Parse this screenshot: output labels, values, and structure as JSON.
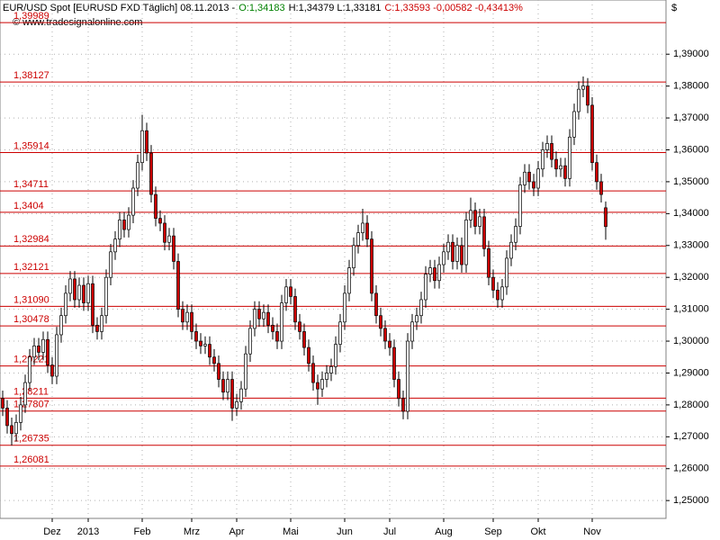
{
  "chart_data": {
    "type": "candlestick",
    "header": [
      {
        "text": "EUR/USD Spot [EURUSD FXD  Täglich] 08.11.2013 -",
        "color": "#000000"
      },
      {
        "text": "O:1,34183",
        "color": "#008000"
      },
      {
        "text": "H:1,34379 L:1,33181",
        "color": "#000000"
      },
      {
        "text": "C:1,33593 -0,00582 -0,43413%",
        "color": "#cc0000"
      }
    ],
    "source": "© www.tradesignalonline.com",
    "currency": "$",
    "up_color": "#ffffff",
    "down_color": "#cc0000",
    "grid": true,
    "categories": [
      null,
      null,
      null,
      null,
      null,
      null,
      null,
      null,
      null,
      null,
      null,
      "Dez",
      null,
      null,
      null,
      null,
      null,
      null,
      null,
      "2013",
      null,
      null,
      null,
      null,
      null,
      null,
      null,
      null,
      null,
      null,
      null,
      "Feb",
      null,
      null,
      null,
      null,
      null,
      null,
      null,
      null,
      null,
      null,
      "Mrz",
      null,
      null,
      null,
      null,
      null,
      null,
      null,
      null,
      null,
      "Apr",
      null,
      null,
      null,
      null,
      null,
      null,
      null,
      null,
      null,
      null,
      null,
      "Mai",
      null,
      null,
      null,
      null,
      null,
      null,
      null,
      null,
      null,
      null,
      null,
      "Jun",
      null,
      null,
      null,
      null,
      null,
      null,
      null,
      null,
      null,
      "Jul",
      null,
      null,
      null,
      null,
      null,
      null,
      null,
      null,
      null,
      null,
      null,
      "Aug",
      null,
      null,
      null,
      null,
      null,
      null,
      null,
      null,
      null,
      null,
      "Sep",
      null,
      null,
      null,
      null,
      null,
      null,
      null,
      null,
      null,
      "Okt",
      null,
      null,
      null,
      null,
      null,
      null,
      null,
      null,
      null,
      null,
      null,
      "Nov",
      null,
      null,
      null
    ],
    "open": [
      1.282,
      1.279,
      1.2735,
      1.271,
      1.2745,
      1.28,
      1.287,
      1.295,
      1.2985,
      1.2965,
      1.3005,
      1.2925,
      1.289,
      1.302,
      1.308,
      1.315,
      1.3195,
      1.313,
      1.3175,
      1.312,
      1.318,
      1.305,
      1.303,
      1.308,
      1.32,
      1.328,
      1.332,
      1.338,
      1.335,
      1.3395,
      1.348,
      1.356,
      1.366,
      1.359,
      1.346,
      1.3385,
      1.337,
      1.331,
      1.333,
      1.325,
      1.31,
      1.306,
      1.309,
      1.303,
      1.3,
      1.2985,
      1.299,
      1.295,
      1.293,
      1.288,
      1.284,
      1.288,
      1.279,
      1.281,
      1.285,
      1.296,
      1.304,
      1.31,
      1.307,
      1.309,
      1.305,
      1.303,
      1.3,
      1.312,
      1.317,
      1.314,
      1.306,
      1.303,
      1.298,
      1.293,
      1.287,
      1.285,
      1.288,
      1.29,
      1.292,
      1.299,
      1.306,
      1.315,
      1.323,
      1.33,
      1.334,
      1.337,
      1.332,
      1.315,
      1.308,
      1.304,
      1.3,
      1.298,
      1.288,
      1.282,
      1.278,
      1.3,
      1.306,
      1.308,
      1.313,
      1.321,
      1.323,
      1.319,
      1.324,
      1.328,
      1.331,
      1.325,
      1.33,
      1.324,
      1.338,
      1.341,
      1.336,
      1.339,
      1.329,
      1.32,
      1.316,
      1.313,
      1.317,
      1.326,
      1.331,
      1.336,
      1.349,
      1.353,
      1.35,
      1.348,
      1.354,
      1.36,
      1.362,
      1.357,
      1.354,
      1.355,
      1.351,
      1.364,
      1.372,
      1.379,
      1.38,
      1.374,
      1.356,
      1.35,
      1.34183
    ],
    "high": [
      1.2845,
      1.2815,
      1.276,
      1.277,
      1.2825,
      1.2895,
      1.2975,
      1.301,
      1.301,
      1.303,
      1.303,
      1.295,
      1.3045,
      1.3105,
      1.3175,
      1.322,
      1.322,
      1.32,
      1.32,
      1.3205,
      1.3205,
      1.3075,
      1.3105,
      1.3225,
      1.3305,
      1.3345,
      1.3405,
      1.3405,
      1.342,
      1.3505,
      1.3585,
      1.371,
      1.3685,
      1.3615,
      1.3485,
      1.341,
      1.3395,
      1.3355,
      1.3355,
      1.3275,
      1.3125,
      1.3115,
      1.3115,
      1.3055,
      1.3025,
      1.3015,
      1.3015,
      1.2975,
      1.2955,
      1.2905,
      1.2905,
      1.2905,
      1.2835,
      1.2875,
      1.2985,
      1.3065,
      1.3125,
      1.3125,
      1.3115,
      1.3115,
      1.3075,
      1.3055,
      1.3145,
      1.3195,
      1.3195,
      1.3165,
      1.3085,
      1.3055,
      1.3005,
      1.2955,
      1.2895,
      1.2905,
      1.2925,
      1.2945,
      1.3015,
      1.3085,
      1.3175,
      1.3255,
      1.3325,
      1.3365,
      1.3415,
      1.3395,
      1.3345,
      1.3175,
      1.3105,
      1.3065,
      1.3025,
      1.3005,
      1.2905,
      1.2845,
      1.3025,
      1.3085,
      1.3105,
      1.3155,
      1.3235,
      1.3255,
      1.3255,
      1.3265,
      1.3305,
      1.3335,
      1.3335,
      1.3325,
      1.3325,
      1.3405,
      1.345,
      1.3435,
      1.3415,
      1.3415,
      1.3315,
      1.3225,
      1.3185,
      1.3195,
      1.3285,
      1.3335,
      1.3385,
      1.3515,
      1.3555,
      1.3555,
      1.3525,
      1.3565,
      1.3625,
      1.3645,
      1.3645,
      1.3595,
      1.3575,
      1.3575,
      1.3665,
      1.3745,
      1.3815,
      1.383,
      1.3825,
      1.3765,
      1.3585,
      1.3525,
      1.34379
    ],
    "low": [
      1.2765,
      1.271,
      1.2673,
      1.2685,
      1.272,
      1.2775,
      1.2845,
      1.2925,
      1.294,
      1.294,
      1.29,
      1.2865,
      1.2865,
      1.2995,
      1.3055,
      1.3125,
      1.3105,
      1.3105,
      1.3095,
      1.3095,
      1.3025,
      1.3005,
      1.3005,
      1.3055,
      1.3175,
      1.3255,
      1.3295,
      1.3325,
      1.3325,
      1.337,
      1.3455,
      1.3535,
      1.3565,
      1.3435,
      1.336,
      1.3345,
      1.3285,
      1.3285,
      1.3225,
      1.3075,
      1.3035,
      1.3035,
      1.3005,
      1.2975,
      1.296,
      1.296,
      1.2925,
      1.2905,
      1.2855,
      1.2815,
      1.2815,
      1.275,
      1.2765,
      1.2785,
      1.2825,
      1.2935,
      1.3015,
      1.3045,
      1.3045,
      1.3025,
      1.3005,
      1.2975,
      1.2975,
      1.3095,
      1.3115,
      1.3035,
      1.3005,
      1.2955,
      1.2905,
      1.2845,
      1.28,
      1.2825,
      1.2855,
      1.2875,
      1.2895,
      1.2965,
      1.3035,
      1.3125,
      1.3205,
      1.3275,
      1.3315,
      1.3295,
      1.3125,
      1.3055,
      1.3015,
      1.2975,
      1.2955,
      1.2855,
      1.2795,
      1.2755,
      1.2755,
      1.2975,
      1.3035,
      1.3055,
      1.3105,
      1.3185,
      1.3165,
      1.3165,
      1.3215,
      1.3255,
      1.3225,
      1.3225,
      1.3215,
      1.3215,
      1.3355,
      1.3335,
      1.3335,
      1.3265,
      1.3175,
      1.3135,
      1.3105,
      1.3105,
      1.3145,
      1.3235,
      1.3285,
      1.3335,
      1.3465,
      1.3475,
      1.3455,
      1.3455,
      1.3515,
      1.3575,
      1.3545,
      1.3515,
      1.3515,
      1.3485,
      1.3485,
      1.3615,
      1.3695,
      1.3765,
      1.3715,
      1.3535,
      1.3475,
      1.3435,
      1.33181
    ],
    "close": [
      1.279,
      1.2735,
      1.271,
      1.2745,
      1.28,
      1.287,
      1.295,
      1.2985,
      1.2965,
      1.3005,
      1.2925,
      1.289,
      1.302,
      1.308,
      1.315,
      1.3195,
      1.313,
      1.3175,
      1.312,
      1.318,
      1.305,
      1.303,
      1.308,
      1.32,
      1.328,
      1.332,
      1.338,
      1.335,
      1.3395,
      1.348,
      1.356,
      1.366,
      1.359,
      1.346,
      1.3385,
      1.337,
      1.331,
      1.333,
      1.325,
      1.31,
      1.306,
      1.309,
      1.303,
      1.3,
      1.2985,
      1.299,
      1.295,
      1.293,
      1.288,
      1.284,
      1.288,
      1.279,
      1.281,
      1.285,
      1.296,
      1.304,
      1.31,
      1.307,
      1.309,
      1.305,
      1.303,
      1.3,
      1.312,
      1.317,
      1.314,
      1.306,
      1.303,
      1.298,
      1.293,
      1.287,
      1.285,
      1.288,
      1.29,
      1.292,
      1.299,
      1.306,
      1.315,
      1.323,
      1.33,
      1.334,
      1.337,
      1.332,
      1.315,
      1.308,
      1.304,
      1.3,
      1.298,
      1.288,
      1.282,
      1.278,
      1.3,
      1.306,
      1.308,
      1.313,
      1.321,
      1.323,
      1.319,
      1.324,
      1.328,
      1.331,
      1.325,
      1.33,
      1.324,
      1.338,
      1.341,
      1.336,
      1.339,
      1.329,
      1.32,
      1.316,
      1.313,
      1.317,
      1.326,
      1.331,
      1.336,
      1.349,
      1.353,
      1.35,
      1.348,
      1.354,
      1.36,
      1.362,
      1.357,
      1.354,
      1.355,
      1.351,
      1.364,
      1.372,
      1.379,
      1.38,
      1.374,
      1.356,
      1.35,
      1.346,
      1.33593
    ],
    "levels_color": "#cc0000",
    "levels": [
      {
        "value": 1.39989,
        "label": "1,39989"
      },
      {
        "value": 1.38127,
        "label": "1,38127"
      },
      {
        "value": 1.35914,
        "label": "1,35914"
      },
      {
        "value": 1.34711,
        "label": "1,34711"
      },
      {
        "value": 1.3404,
        "label": "1,3404"
      },
      {
        "value": 1.32984,
        "label": "1,32984"
      },
      {
        "value": 1.32121,
        "label": "1,32121"
      },
      {
        "value": 1.3109,
        "label": "1,31090"
      },
      {
        "value": 1.30478,
        "label": "1,30478"
      },
      {
        "value": 1.29221,
        "label": "1,29221"
      },
      {
        "value": 1.28211,
        "label": "1,28211"
      },
      {
        "value": 1.27807,
        "label": "1,27807"
      },
      {
        "value": 1.26735,
        "label": "1,26735"
      },
      {
        "value": 1.26081,
        "label": "1,26081"
      }
    ],
    "ylim": [
      1.2444,
      1.407
    ],
    "yticks": [
      {
        "value": 1.25,
        "label": "1,25000"
      },
      {
        "value": 1.26,
        "label": "1,26000"
      },
      {
        "value": 1.27,
        "label": "1,27000"
      },
      {
        "value": 1.28,
        "label": "1,28000"
      },
      {
        "value": 1.29,
        "label": "1,29000"
      },
      {
        "value": 1.3,
        "label": "1,30000"
      },
      {
        "value": 1.31,
        "label": "1,31000"
      },
      {
        "value": 1.32,
        "label": "1,32000"
      },
      {
        "value": 1.33,
        "label": "1,33000"
      },
      {
        "value": 1.34,
        "label": "1,34000"
      },
      {
        "value": 1.35,
        "label": "1,35000"
      },
      {
        "value": 1.36,
        "label": "1,36000"
      },
      {
        "value": 1.37,
        "label": "1,37000"
      },
      {
        "value": 1.38,
        "label": "1,38000"
      },
      {
        "value": 1.39,
        "label": "1,39000"
      }
    ]
  }
}
